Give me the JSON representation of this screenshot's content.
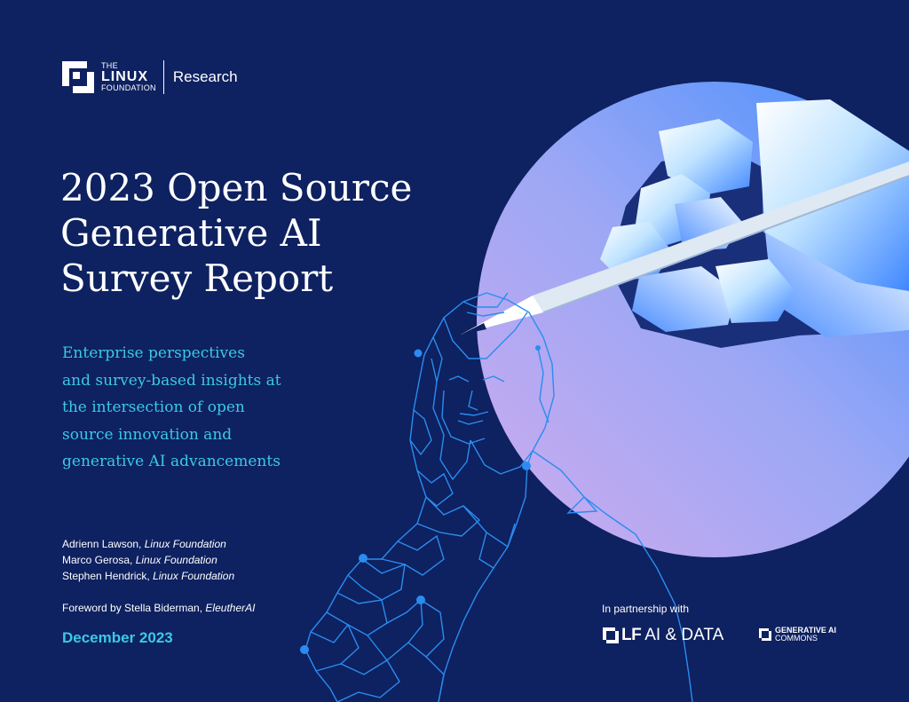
{
  "brand": {
    "logo_the": "THE",
    "logo_linux": "LINUX",
    "logo_foundation": "FOUNDATION",
    "logo_research": "Research"
  },
  "title_lines": [
    "2023 Open Source",
    "Generative AI",
    "Survey Report"
  ],
  "subtitle_lines": [
    "Enterprise perspectives",
    "and survey-based insights at",
    "the intersection of open",
    "source innovation and",
    "generative AI advancements"
  ],
  "authors": [
    {
      "name": "Adrienn Lawson,",
      "affiliation": "Linux Foundation"
    },
    {
      "name": "Marco Gerosa,",
      "affiliation": "Linux Foundation"
    },
    {
      "name": "Stephen Hendrick,",
      "affiliation": "Linux Foundation"
    }
  ],
  "foreword": {
    "text": "Foreword by Stella Biderman,",
    "affiliation": "EleutherAI"
  },
  "date": "December 2023",
  "partners": {
    "label": "In partnership with",
    "lf_ai_letters": "LF",
    "lf_ai_rest": "AI & DATA",
    "genai_line1": "GENERATIVE AI",
    "genai_line2": "COMMONS"
  },
  "colors": {
    "background": "#0e2160",
    "accent_cyan": "#3bc9e6",
    "circle_start": "#c9a9ee",
    "circle_end": "#3f8cff",
    "wireframe": "#2a8cf0"
  },
  "icons": [
    "linux-foundation-logo-icon",
    "lf-ai-data-logo-icon",
    "generative-ai-commons-logo-icon"
  ]
}
